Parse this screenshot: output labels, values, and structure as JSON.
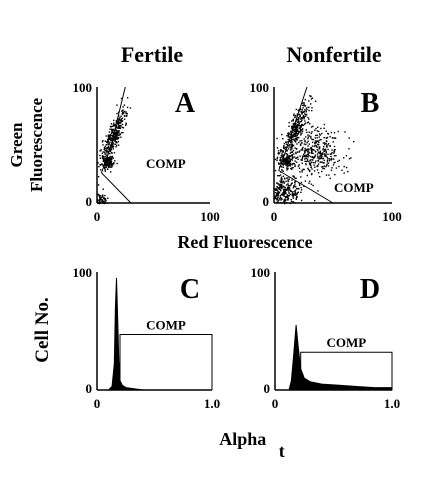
{
  "figure": {
    "col_titles": [
      "Fertile",
      "Nonfertile"
    ],
    "scatter_xlabel": "Red  Fluorescence",
    "scatter_ylabel_line1": "Green",
    "scatter_ylabel_line2": "Fluorescence",
    "hist_ylabel": "Cell  No.",
    "hist_xlabel_main": "Alpha",
    "hist_xlabel_sub": "t",
    "gate_label": "COMP"
  },
  "chart_data": [
    {
      "type": "scatter",
      "panel": "A",
      "title": "Fertile",
      "xlabel": "Red  Fluorescence",
      "ylabel": "Green Fluorescence",
      "xlim": [
        0,
        100
      ],
      "ylim": [
        0,
        100
      ],
      "xticks": [
        "0",
        "100"
      ],
      "yticks": [
        "0",
        "100"
      ],
      "gate_label": "COMP",
      "gate_outline": [
        [
          4,
          26
        ],
        [
          12,
          48
        ],
        [
          25,
          100
        ]
      ],
      "gate_cutline": [
        [
          4,
          26
        ],
        [
          30,
          0
        ]
      ],
      "clusters": [
        {
          "cx": 14,
          "cy": 58,
          "sx": 3,
          "sy": 12,
          "tilt": 0.4,
          "n": 330
        },
        {
          "cx": 9,
          "cy": 36,
          "sx": 2.5,
          "sy": 3,
          "tilt": 0,
          "n": 140
        },
        {
          "cx": 3,
          "cy": 3,
          "sx": 2.5,
          "sy": 3,
          "tilt": 0,
          "n": 90
        }
      ]
    },
    {
      "type": "scatter",
      "panel": "B",
      "title": "Nonfertile",
      "xlabel": "Red  Fluorescence",
      "ylabel": "Green Fluorescence",
      "xlim": [
        0,
        100
      ],
      "ylim": [
        0,
        100
      ],
      "xticks": [
        "0",
        "100"
      ],
      "yticks": [
        "0",
        "100"
      ],
      "gate_label": "COMP",
      "gate_outline": [
        [
          4,
          28
        ],
        [
          10,
          45
        ],
        [
          28,
          100
        ]
      ],
      "gate_cutline": [
        [
          4,
          28
        ],
        [
          50,
          0
        ]
      ],
      "clusters": [
        {
          "cx": 17,
          "cy": 62,
          "sx": 3.5,
          "sy": 13,
          "tilt": 0.4,
          "n": 300
        },
        {
          "cx": 10,
          "cy": 37,
          "sx": 3,
          "sy": 3.5,
          "tilt": 0,
          "n": 120
        },
        {
          "cx": 32,
          "cy": 44,
          "sx": 12,
          "sy": 11,
          "tilt": 0,
          "n": 420
        },
        {
          "cx": 8,
          "cy": 9,
          "sx": 7,
          "sy": 7,
          "tilt": 0,
          "n": 300
        }
      ]
    },
    {
      "type": "area",
      "panel": "C",
      "xlabel": "Alpha t",
      "ylabel": "Cell  No.",
      "xlim": [
        0,
        1.0
      ],
      "ylim": [
        0,
        100
      ],
      "xticks": [
        "0",
        "1.0"
      ],
      "yticks": [
        "0",
        "100"
      ],
      "x": [
        0.0,
        0.1,
        0.13,
        0.15,
        0.16,
        0.17,
        0.18,
        0.19,
        0.2,
        0.22,
        0.25,
        0.4,
        1.0
      ],
      "y": [
        0,
        0,
        3,
        22,
        70,
        95,
        60,
        25,
        8,
        4,
        2,
        0,
        0
      ],
      "gate_label": "COMP",
      "gate": {
        "x0": 0.2,
        "x1": 1.0,
        "level": 47
      }
    },
    {
      "type": "area",
      "panel": "D",
      "xlabel": "Alpha t",
      "ylabel": "Cell  No.",
      "xlim": [
        0,
        1.0
      ],
      "ylim": [
        0,
        100
      ],
      "xticks": [
        "0",
        "1.0"
      ],
      "yticks": [
        "0",
        "100"
      ],
      "x": [
        0.0,
        0.12,
        0.14,
        0.16,
        0.18,
        0.2,
        0.22,
        0.25,
        0.3,
        0.4,
        0.55,
        0.7,
        0.85,
        1.0
      ],
      "y": [
        0,
        0,
        8,
        30,
        55,
        35,
        18,
        10,
        7,
        5,
        4,
        3,
        2,
        2
      ],
      "gate_label": "COMP",
      "gate": {
        "x0": 0.22,
        "x1": 1.0,
        "level": 32
      }
    }
  ]
}
